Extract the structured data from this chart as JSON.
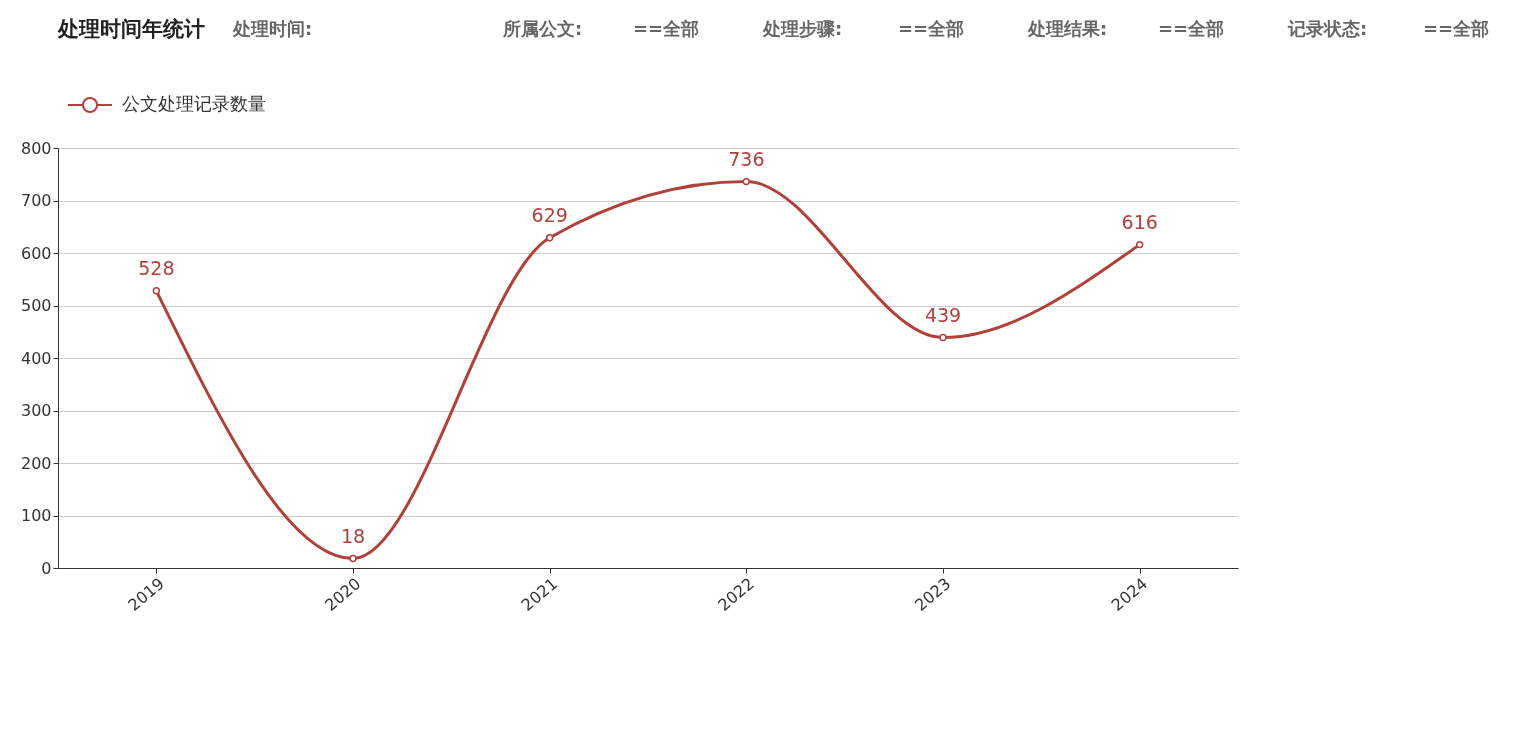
{
  "chart_data": {
    "type": "line",
    "title": "处理时间年统计",
    "annotations": [
      "处理时间:",
      "所属公文:",
      "==全部",
      "处理步骤:",
      "==全部",
      "处理结果:",
      "==全部",
      "记录状态:",
      "==全部"
    ],
    "categories": [
      "2019",
      "2020",
      "2021",
      "2022",
      "2023",
      "2024"
    ],
    "series": [
      {
        "name": "公文处理记录数量",
        "color": "#b0403a",
        "values": [
          528,
          18,
          629,
          736,
          439,
          616
        ]
      }
    ],
    "ylim": [
      0,
      800
    ],
    "yticks": [
      0,
      100,
      200,
      300,
      400,
      500,
      600,
      700,
      800
    ],
    "grid": "y",
    "legend": "top left",
    "marker": "circle",
    "line_style": "solid",
    "data_labels": true
  }
}
